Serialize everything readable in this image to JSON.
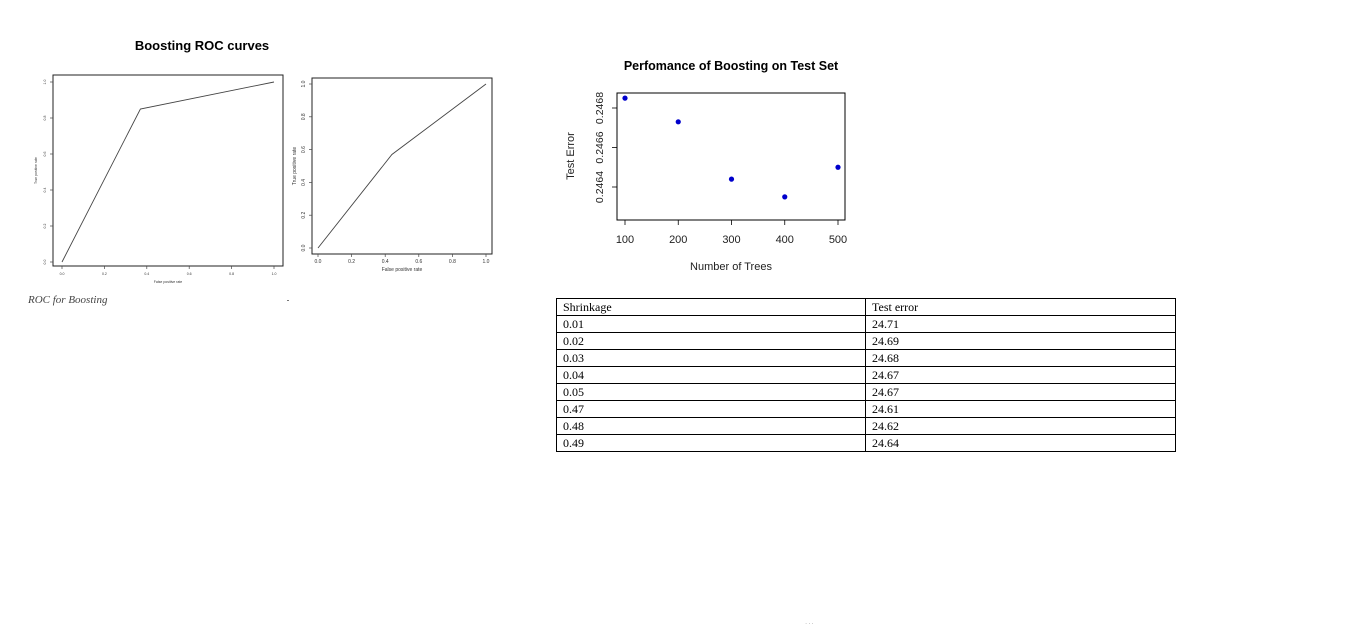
{
  "roc": {
    "title": "Boosting ROC curves",
    "caption": "ROC for Boosting"
  },
  "performance": {
    "title": "Perfomance of Boosting on Test Set"
  },
  "table": {
    "headers": [
      "Shrinkage",
      "Test error"
    ],
    "rows": [
      [
        "0.01",
        "24.71"
      ],
      [
        "0.02",
        "24.69"
      ],
      [
        "0.03",
        "24.68"
      ],
      [
        "0.04",
        "24.67"
      ],
      [
        "0.05",
        "24.67"
      ],
      [
        "0.47",
        "24.61"
      ],
      [
        "0.48",
        "24.62"
      ],
      [
        "0.49",
        "24.64"
      ]
    ]
  },
  "footer": {
    "text": "..."
  },
  "chart_data": [
    {
      "type": "line",
      "title": "Boosting ROC curves",
      "xlabel": "False positive rate",
      "ylabel": "True positive rate",
      "x": [
        0.0,
        0.37,
        1.0
      ],
      "y": [
        0.0,
        0.85,
        1.0
      ],
      "xlim": [
        0,
        1
      ],
      "ylim": [
        0,
        1
      ],
      "xticks": [
        "0.0",
        "0.2",
        "0.4",
        "0.6",
        "0.8",
        "1.0"
      ],
      "yticks": [
        "0.0",
        "0.2",
        "0.4",
        "0.6",
        "0.8",
        "1.0"
      ],
      "grid": false
    },
    {
      "type": "line",
      "xlabel": "False positive rate",
      "ylabel": "True positive rate",
      "x": [
        0.0,
        0.44,
        1.0
      ],
      "y": [
        0.0,
        0.57,
        1.0
      ],
      "xlim": [
        0,
        1
      ],
      "ylim": [
        0,
        1
      ],
      "xticks": [
        "0.0",
        "0.2",
        "0.4",
        "0.6",
        "0.8",
        "1.0"
      ],
      "yticks": [
        "0.0",
        "0.2",
        "0.4",
        "0.6",
        "0.8",
        "1.0"
      ],
      "grid": false
    },
    {
      "type": "scatter",
      "title": "Perfomance of Boosting on Test Set",
      "xlabel": "Number of Trees",
      "ylabel": "Test Error",
      "x": [
        100,
        200,
        300,
        400,
        500
      ],
      "y": [
        0.24685,
        0.24673,
        0.24644,
        0.24635,
        0.2465
      ],
      "xlim": [
        100,
        500
      ],
      "ylim": [
        0.2463,
        0.2469
      ],
      "xticks": [
        "100",
        "200",
        "300",
        "400",
        "500"
      ],
      "yticks": [
        "0.2464",
        "0.2466",
        "0.2468"
      ],
      "point_color": "#0000cc",
      "grid": false
    }
  ]
}
